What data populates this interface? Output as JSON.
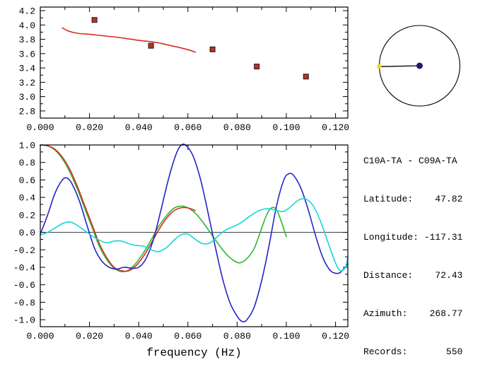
{
  "colors": {
    "background": "#ffffff",
    "axis": "#000000",
    "red": "#d92b20",
    "green": "#2fb52f",
    "blue": "#2424c8",
    "cyan": "#12d8d8",
    "marker_fill": "#bb3322",
    "marker_edge": "#1a1a1a",
    "dial_center_dot": "#1c1c6e",
    "dial_end_dot": "#ead90f"
  },
  "info_panel": {
    "lines": [
      "C10A-TA - C09A-TA",
      "Latitude:    47.82",
      "Longitude: -117.31",
      "Distance:    72.43",
      "Azimuth:    268.77",
      "Records:       550"
    ]
  },
  "azimuth_dial": {
    "azimuth_deg": 268.77
  },
  "chart_data": [
    {
      "name": "group-velocity-dispersion",
      "type": "line",
      "title": "",
      "xlabel": "",
      "ylabel": "",
      "xlim": [
        0,
        0.125
      ],
      "ylim": [
        2.7,
        4.25
      ],
      "x_ticks": {
        "values": [
          0,
          0.02,
          0.04,
          0.06,
          0.08,
          0.1,
          0.12
        ],
        "labels": [
          "0.000",
          "0.020",
          "0.040",
          "0.060",
          "0.080",
          "0.100",
          "0.120"
        ],
        "minor_step": 0.01
      },
      "y_ticks": {
        "values": [
          2.8,
          3.0,
          3.2,
          3.4,
          3.6,
          3.8,
          4.0,
          4.2
        ],
        "labels": [
          "2.8",
          "3.0",
          "3.2",
          "3.4",
          "3.6",
          "3.8",
          "4.0",
          "4.2"
        ],
        "minor_step": 0.1
      },
      "series": [
        {
          "name": "dispersion-curve",
          "color": "#d92b20",
          "points": [
            [
              0.009,
              3.96
            ],
            [
              0.011,
              3.92
            ],
            [
              0.013,
              3.9
            ],
            [
              0.016,
              3.88
            ],
            [
              0.02,
              3.87
            ],
            [
              0.024,
              3.855
            ],
            [
              0.028,
              3.84
            ],
            [
              0.032,
              3.825
            ],
            [
              0.036,
              3.805
            ],
            [
              0.04,
              3.785
            ],
            [
              0.044,
              3.77
            ],
            [
              0.048,
              3.75
            ],
            [
              0.052,
              3.72
            ],
            [
              0.056,
              3.69
            ],
            [
              0.059,
              3.665
            ],
            [
              0.061,
              3.645
            ],
            [
              0.063,
              3.62
            ]
          ]
        },
        {
          "name": "dispersion-picks",
          "marker": "square",
          "color": "#bb3322",
          "edge": "#1a1a1a",
          "points": [
            [
              0.022,
              4.07
            ],
            [
              0.045,
              3.71
            ],
            [
              0.07,
              3.66
            ],
            [
              0.088,
              3.42
            ],
            [
              0.108,
              3.28
            ]
          ]
        }
      ]
    },
    {
      "name": "cross-spectrum-waveforms",
      "type": "line",
      "title": "",
      "xlabel": "frequency (Hz)",
      "ylabel": "",
      "xlim": [
        0,
        0.125
      ],
      "ylim": [
        -1.08,
        1.0
      ],
      "zero_line": true,
      "x_ticks": {
        "values": [
          0,
          0.02,
          0.04,
          0.06,
          0.08,
          0.1,
          0.12
        ],
        "labels": [
          "0.000",
          "0.020",
          "0.040",
          "0.060",
          "0.080",
          "0.100",
          "0.120"
        ],
        "minor_step": 0.01
      },
      "y_ticks": {
        "values": [
          -1.0,
          -0.8,
          -0.6,
          -0.4,
          -0.2,
          0,
          0.2,
          0.4,
          0.6,
          0.8,
          1.0
        ],
        "labels": [
          "-1.0",
          "-0.8",
          "-0.6",
          "-0.4",
          "-0.2",
          "0.0",
          "0.2",
          "0.4",
          "0.6",
          "0.8",
          "1.0"
        ],
        "minor_step": 0.1
      },
      "series": [
        {
          "name": "green-curve",
          "color": "#2fb52f",
          "points": [
            [
              0,
              1.0
            ],
            [
              0.003,
              0.99
            ],
            [
              0.006,
              0.94
            ],
            [
              0.009,
              0.84
            ],
            [
              0.012,
              0.69
            ],
            [
              0.015,
              0.5
            ],
            [
              0.018,
              0.28
            ],
            [
              0.021,
              0.06
            ],
            [
              0.024,
              -0.16
            ],
            [
              0.027,
              -0.31
            ],
            [
              0.03,
              -0.41
            ],
            [
              0.033,
              -0.45
            ],
            [
              0.036,
              -0.43
            ],
            [
              0.039,
              -0.35
            ],
            [
              0.042,
              -0.23
            ],
            [
              0.045,
              -0.09
            ],
            [
              0.048,
              0.06
            ],
            [
              0.051,
              0.18
            ],
            [
              0.054,
              0.27
            ],
            [
              0.057,
              0.3
            ],
            [
              0.06,
              0.28
            ],
            [
              0.063,
              0.22
            ],
            [
              0.066,
              0.12
            ],
            [
              0.069,
              0.0
            ],
            [
              0.072,
              -0.12
            ],
            [
              0.075,
              -0.23
            ],
            [
              0.078,
              -0.31
            ],
            [
              0.081,
              -0.35
            ],
            [
              0.084,
              -0.3
            ],
            [
              0.087,
              -0.18
            ],
            [
              0.09,
              0.05
            ],
            [
              0.092,
              0.2
            ],
            [
              0.094,
              0.28
            ],
            [
              0.096,
              0.26
            ],
            [
              0.098,
              0.12
            ],
            [
              0.1,
              -0.05
            ]
          ]
        },
        {
          "name": "red-curve",
          "color": "#d92b20",
          "points": [
            [
              0,
              1.0
            ],
            [
              0.003,
              0.99
            ],
            [
              0.006,
              0.95
            ],
            [
              0.009,
              0.86
            ],
            [
              0.012,
              0.72
            ],
            [
              0.015,
              0.53
            ],
            [
              0.018,
              0.31
            ],
            [
              0.021,
              0.09
            ],
            [
              0.024,
              -0.13
            ],
            [
              0.027,
              -0.29
            ],
            [
              0.03,
              -0.4
            ],
            [
              0.033,
              -0.44
            ],
            [
              0.036,
              -0.44
            ],
            [
              0.039,
              -0.38
            ],
            [
              0.042,
              -0.27
            ],
            [
              0.045,
              -0.13
            ],
            [
              0.048,
              0.02
            ],
            [
              0.051,
              0.15
            ],
            [
              0.054,
              0.24
            ],
            [
              0.057,
              0.28
            ],
            [
              0.06,
              0.28
            ],
            [
              0.063,
              0.25
            ]
          ]
        },
        {
          "name": "blue-curve",
          "color": "#2424c8",
          "points": [
            [
              0,
              -0.02
            ],
            [
              0.003,
              0.2
            ],
            [
              0.006,
              0.45
            ],
            [
              0.009,
              0.6
            ],
            [
              0.011,
              0.62
            ],
            [
              0.013,
              0.55
            ],
            [
              0.016,
              0.35
            ],
            [
              0.019,
              0.08
            ],
            [
              0.022,
              -0.18
            ],
            [
              0.025,
              -0.33
            ],
            [
              0.028,
              -0.4
            ],
            [
              0.031,
              -0.42
            ],
            [
              0.034,
              -0.4
            ],
            [
              0.037,
              -0.41
            ],
            [
              0.04,
              -0.4
            ],
            [
              0.043,
              -0.3
            ],
            [
              0.046,
              -0.08
            ],
            [
              0.049,
              0.25
            ],
            [
              0.052,
              0.6
            ],
            [
              0.055,
              0.88
            ],
            [
              0.057,
              0.99
            ],
            [
              0.059,
              1.0
            ],
            [
              0.062,
              0.88
            ],
            [
              0.065,
              0.62
            ],
            [
              0.068,
              0.25
            ],
            [
              0.071,
              -0.15
            ],
            [
              0.074,
              -0.52
            ],
            [
              0.077,
              -0.8
            ],
            [
              0.08,
              -0.96
            ],
            [
              0.082,
              -1.02
            ],
            [
              0.084,
              -1.0
            ],
            [
              0.087,
              -0.85
            ],
            [
              0.09,
              -0.55
            ],
            [
              0.093,
              -0.15
            ],
            [
              0.096,
              0.3
            ],
            [
              0.099,
              0.6
            ],
            [
              0.101,
              0.67
            ],
            [
              0.103,
              0.65
            ],
            [
              0.106,
              0.5
            ],
            [
              0.109,
              0.25
            ],
            [
              0.112,
              -0.05
            ],
            [
              0.115,
              -0.3
            ],
            [
              0.118,
              -0.44
            ],
            [
              0.121,
              -0.47
            ],
            [
              0.123,
              -0.43
            ],
            [
              0.125,
              -0.36
            ]
          ]
        },
        {
          "name": "cyan-curve",
          "color": "#12d8d8",
          "points": [
            [
              0,
              -0.03
            ],
            [
              0.003,
              0.0
            ],
            [
              0.006,
              0.05
            ],
            [
              0.009,
              0.1
            ],
            [
              0.012,
              0.12
            ],
            [
              0.015,
              0.08
            ],
            [
              0.018,
              0.02
            ],
            [
              0.021,
              -0.04
            ],
            [
              0.024,
              -0.09
            ],
            [
              0.027,
              -0.12
            ],
            [
              0.03,
              -0.1
            ],
            [
              0.033,
              -0.1
            ],
            [
              0.036,
              -0.13
            ],
            [
              0.039,
              -0.15
            ],
            [
              0.042,
              -0.16
            ],
            [
              0.045,
              -0.2
            ],
            [
              0.048,
              -0.22
            ],
            [
              0.051,
              -0.18
            ],
            [
              0.054,
              -0.1
            ],
            [
              0.057,
              -0.03
            ],
            [
              0.06,
              -0.02
            ],
            [
              0.063,
              -0.08
            ],
            [
              0.066,
              -0.13
            ],
            [
              0.069,
              -0.12
            ],
            [
              0.072,
              -0.05
            ],
            [
              0.075,
              0.02
            ],
            [
              0.078,
              0.06
            ],
            [
              0.081,
              0.1
            ],
            [
              0.084,
              0.16
            ],
            [
              0.087,
              0.22
            ],
            [
              0.09,
              0.26
            ],
            [
              0.093,
              0.27
            ],
            [
              0.096,
              0.25
            ],
            [
              0.099,
              0.24
            ],
            [
              0.102,
              0.3
            ],
            [
              0.105,
              0.37
            ],
            [
              0.108,
              0.38
            ],
            [
              0.111,
              0.3
            ],
            [
              0.114,
              0.12
            ],
            [
              0.117,
              -0.12
            ],
            [
              0.12,
              -0.35
            ],
            [
              0.122,
              -0.44
            ],
            [
              0.124,
              -0.4
            ],
            [
              0.125,
              -0.28
            ]
          ]
        }
      ]
    }
  ]
}
